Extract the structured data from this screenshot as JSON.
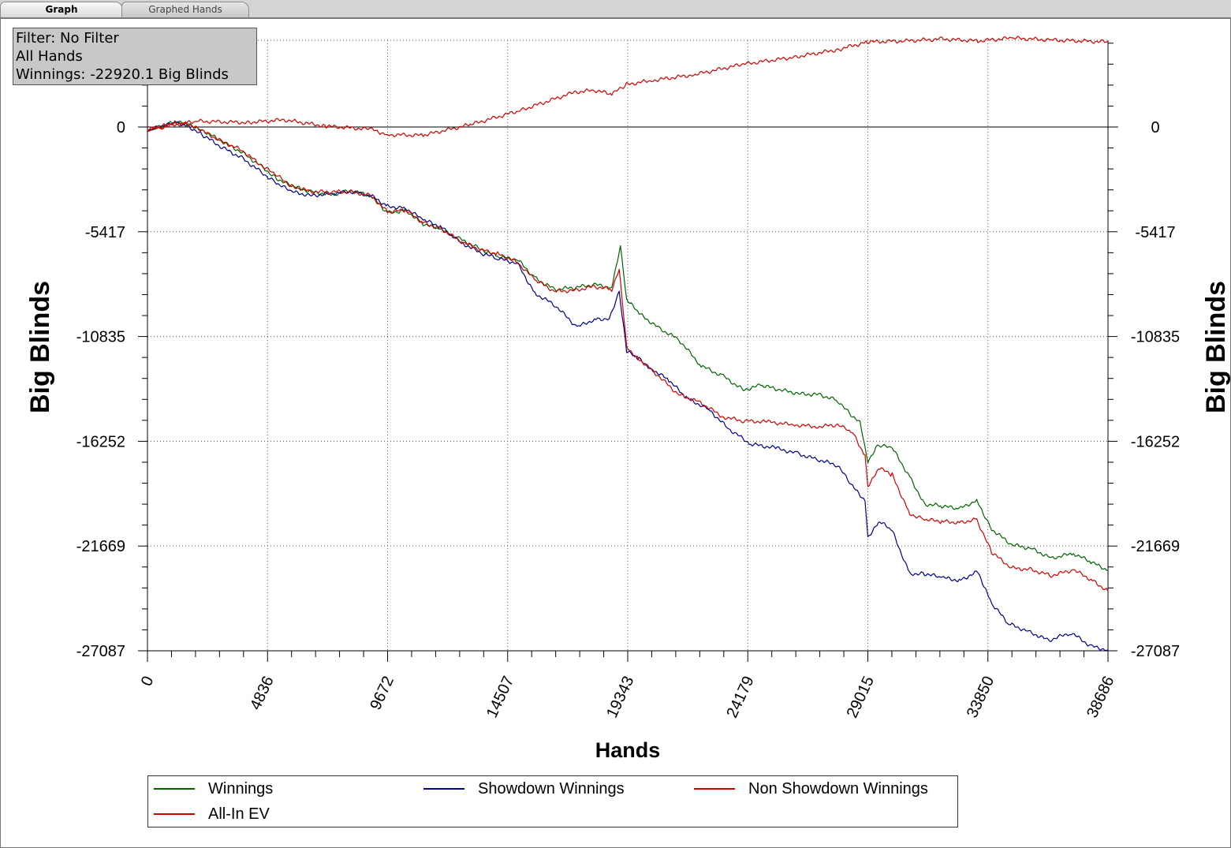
{
  "tabs": [
    {
      "label": "Graph",
      "active": true
    },
    {
      "label": "Graphed Hands",
      "active": false
    }
  ],
  "info": {
    "filter": "Filter: No Filter",
    "hands": "All Hands",
    "winnings": "Winnings: -22920.1 Big Blinds"
  },
  "chart_data": {
    "type": "line",
    "title": "",
    "xlabel": "Hands",
    "ylabel": "Big Blinds",
    "xlim": [
      0,
      38686
    ],
    "ylim": [
      -27087,
      4450
    ],
    "grid": true,
    "legend_position": "bottom",
    "x_ticks": [
      0,
      4836,
      9672,
      14507,
      19343,
      24179,
      29015,
      33850,
      38686
    ],
    "y_ticks": [
      0,
      -5417,
      -10835,
      -16252,
      -21669,
      -27087
    ],
    "series": [
      {
        "name": "Winnings",
        "color": "#006400",
        "points": [
          [
            0,
            -150
          ],
          [
            600,
            40
          ],
          [
            1100,
            250
          ],
          [
            1600,
            180
          ],
          [
            2200,
            -150
          ],
          [
            3000,
            -750
          ],
          [
            3800,
            -1300
          ],
          [
            4600,
            -2050
          ],
          [
            5200,
            -2650
          ],
          [
            5800,
            -3050
          ],
          [
            6600,
            -3350
          ],
          [
            7400,
            -3500
          ],
          [
            8200,
            -3300
          ],
          [
            9000,
            -3550
          ],
          [
            9672,
            -4450
          ],
          [
            10400,
            -4300
          ],
          [
            11100,
            -5000
          ],
          [
            11800,
            -5300
          ],
          [
            12600,
            -5800
          ],
          [
            13400,
            -6300
          ],
          [
            14100,
            -6700
          ],
          [
            14900,
            -6850
          ],
          [
            15600,
            -7800
          ],
          [
            16400,
            -8400
          ],
          [
            17200,
            -8300
          ],
          [
            18000,
            -8150
          ],
          [
            18700,
            -8300
          ],
          [
            19050,
            -6100
          ],
          [
            19300,
            -8900
          ],
          [
            19800,
            -9650
          ],
          [
            20600,
            -10400
          ],
          [
            21400,
            -11000
          ],
          [
            22300,
            -12350
          ],
          [
            23200,
            -12900
          ],
          [
            24000,
            -13600
          ],
          [
            24700,
            -13350
          ],
          [
            25500,
            -13600
          ],
          [
            26300,
            -13800
          ],
          [
            27100,
            -13850
          ],
          [
            27800,
            -14150
          ],
          [
            28400,
            -15000
          ],
          [
            28700,
            -15300
          ],
          [
            29015,
            -17300
          ],
          [
            29400,
            -16450
          ],
          [
            30000,
            -16600
          ],
          [
            30700,
            -18100
          ],
          [
            31300,
            -19500
          ],
          [
            32000,
            -19600
          ],
          [
            32700,
            -19750
          ],
          [
            33400,
            -19300
          ],
          [
            34000,
            -20800
          ],
          [
            34800,
            -21600
          ],
          [
            35600,
            -21800
          ],
          [
            36400,
            -22300
          ],
          [
            37300,
            -22050
          ],
          [
            38000,
            -22500
          ],
          [
            38686,
            -22920
          ]
        ]
      },
      {
        "name": "Showdown Winnings",
        "color": "#00008b",
        "points": [
          [
            0,
            -150
          ],
          [
            600,
            30
          ],
          [
            1100,
            220
          ],
          [
            1600,
            80
          ],
          [
            2200,
            -400
          ],
          [
            3000,
            -1050
          ],
          [
            3800,
            -1600
          ],
          [
            4600,
            -2350
          ],
          [
            5200,
            -2900
          ],
          [
            5800,
            -3350
          ],
          [
            6600,
            -3550
          ],
          [
            7400,
            -3450
          ],
          [
            8200,
            -3350
          ],
          [
            9000,
            -3550
          ],
          [
            9672,
            -4100
          ],
          [
            10400,
            -4200
          ],
          [
            11100,
            -4800
          ],
          [
            11800,
            -5150
          ],
          [
            12600,
            -5950
          ],
          [
            13400,
            -6500
          ],
          [
            14100,
            -6800
          ],
          [
            14900,
            -7050
          ],
          [
            15600,
            -8600
          ],
          [
            16400,
            -9200
          ],
          [
            17300,
            -10350
          ],
          [
            18000,
            -9950
          ],
          [
            18600,
            -9900
          ],
          [
            19000,
            -8500
          ],
          [
            19300,
            -11600
          ],
          [
            19800,
            -12000
          ],
          [
            20300,
            -12500
          ],
          [
            21000,
            -13100
          ],
          [
            21700,
            -14000
          ],
          [
            22600,
            -14600
          ],
          [
            23400,
            -15600
          ],
          [
            24300,
            -16400
          ],
          [
            25300,
            -16600
          ],
          [
            26200,
            -16900
          ],
          [
            27000,
            -17200
          ],
          [
            27800,
            -17500
          ],
          [
            28400,
            -18600
          ],
          [
            28900,
            -19300
          ],
          [
            29015,
            -21200
          ],
          [
            29500,
            -20400
          ],
          [
            30000,
            -20900
          ],
          [
            30700,
            -23100
          ],
          [
            31300,
            -23100
          ],
          [
            32000,
            -23300
          ],
          [
            32700,
            -23450
          ],
          [
            33450,
            -23000
          ],
          [
            34000,
            -24650
          ],
          [
            34700,
            -25700
          ],
          [
            35500,
            -26100
          ],
          [
            36300,
            -26550
          ],
          [
            37200,
            -26150
          ],
          [
            38000,
            -26850
          ],
          [
            38686,
            -27050
          ]
        ]
      },
      {
        "name": "Non Showdown Winnings",
        "color": "#d40000",
        "points": [
          [
            0,
            -150
          ],
          [
            2000,
            300
          ],
          [
            4000,
            230
          ],
          [
            5500,
            370
          ],
          [
            7200,
            40
          ],
          [
            9000,
            -120
          ],
          [
            9672,
            -400
          ],
          [
            11100,
            -430
          ],
          [
            13000,
            120
          ],
          [
            15000,
            850
          ],
          [
            17200,
            1800
          ],
          [
            18000,
            1900
          ],
          [
            18700,
            1700
          ],
          [
            19300,
            2200
          ],
          [
            20300,
            2400
          ],
          [
            22000,
            2700
          ],
          [
            24000,
            3250
          ],
          [
            26000,
            3600
          ],
          [
            27800,
            4000
          ],
          [
            29000,
            4400
          ],
          [
            30500,
            4450
          ],
          [
            32000,
            4550
          ],
          [
            33450,
            4450
          ],
          [
            34800,
            4600
          ],
          [
            36400,
            4500
          ],
          [
            38686,
            4400
          ]
        ]
      },
      {
        "name": "All-In EV",
        "color": "#d40000",
        "points": [
          [
            0,
            -150
          ],
          [
            600,
            40
          ],
          [
            1100,
            250
          ],
          [
            1600,
            150
          ],
          [
            2200,
            -200
          ],
          [
            3000,
            -750
          ],
          [
            3800,
            -1200
          ],
          [
            4600,
            -2000
          ],
          [
            5200,
            -2500
          ],
          [
            5800,
            -3050
          ],
          [
            6600,
            -3350
          ],
          [
            7400,
            -3350
          ],
          [
            8200,
            -3350
          ],
          [
            9000,
            -3550
          ],
          [
            9672,
            -4400
          ],
          [
            10400,
            -4300
          ],
          [
            11100,
            -4950
          ],
          [
            11800,
            -5250
          ],
          [
            12600,
            -5900
          ],
          [
            13400,
            -6350
          ],
          [
            14100,
            -6550
          ],
          [
            14900,
            -7000
          ],
          [
            15600,
            -7900
          ],
          [
            16400,
            -8500
          ],
          [
            17200,
            -8450
          ],
          [
            18000,
            -8250
          ],
          [
            18700,
            -8400
          ],
          [
            19000,
            -7400
          ],
          [
            19300,
            -11400
          ],
          [
            19800,
            -12000
          ],
          [
            20600,
            -12900
          ],
          [
            21400,
            -13850
          ],
          [
            22200,
            -14200
          ],
          [
            23200,
            -15000
          ],
          [
            24000,
            -15200
          ],
          [
            25000,
            -15250
          ],
          [
            26000,
            -15400
          ],
          [
            27000,
            -15500
          ],
          [
            27800,
            -15400
          ],
          [
            28400,
            -15800
          ],
          [
            28900,
            -17000
          ],
          [
            29015,
            -18550
          ],
          [
            29500,
            -17650
          ],
          [
            30000,
            -18000
          ],
          [
            30700,
            -20000
          ],
          [
            31300,
            -20300
          ],
          [
            32000,
            -20400
          ],
          [
            32700,
            -20450
          ],
          [
            33400,
            -20300
          ],
          [
            34000,
            -22000
          ],
          [
            34800,
            -22800
          ],
          [
            35600,
            -22900
          ],
          [
            36400,
            -23200
          ],
          [
            37300,
            -22900
          ],
          [
            38000,
            -23400
          ],
          [
            38686,
            -24000
          ]
        ]
      }
    ]
  },
  "legend": {
    "items": [
      {
        "label": "Winnings",
        "color": "#006400"
      },
      {
        "label": "Showdown Winnings",
        "color": "#00008b"
      },
      {
        "label": "Non Showdown Winnings",
        "color": "#d40000"
      },
      {
        "label": "All-In EV",
        "color": "#d40000"
      }
    ]
  }
}
